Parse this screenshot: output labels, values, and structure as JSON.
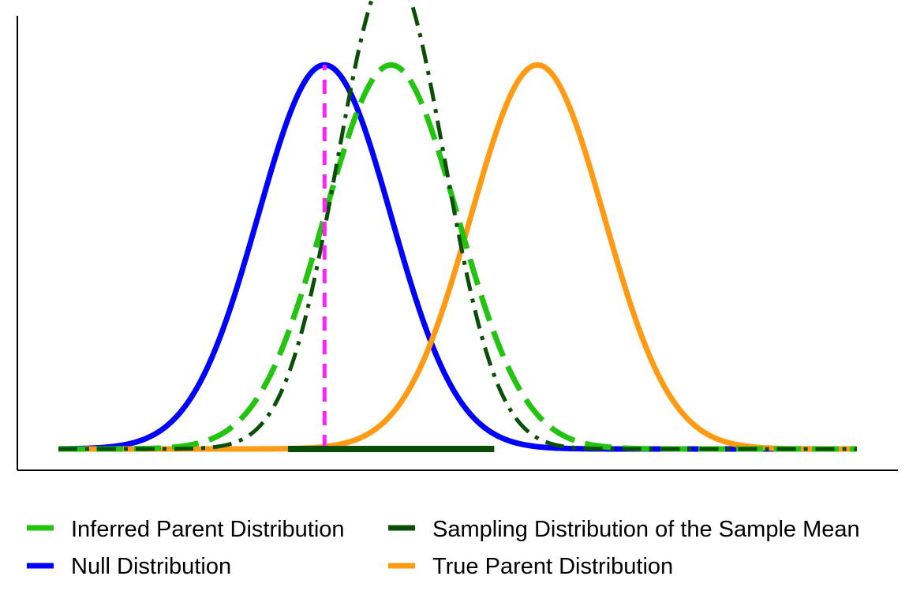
{
  "chart_data": {
    "type": "line",
    "title": "",
    "xlabel": "",
    "ylabel": "",
    "x_ticks": false,
    "y_ticks": false,
    "grid": false,
    "xlim": [
      -4,
      8
    ],
    "ylim": [
      0,
      0.45
    ],
    "legend_position": "bottom",
    "series": [
      {
        "key": "inferred",
        "name": "Inferred Parent Distribution",
        "distribution": "normal",
        "mean": 1.0,
        "sd": 1.0,
        "dash": "dashed",
        "color": "#22c40f"
      },
      {
        "key": "sampling",
        "name": "Sampling Distribution of the Sample Mean",
        "distribution": "normal",
        "mean": 1.0,
        "sd": 0.8,
        "dash": "dotdash",
        "color": "#0b4f07"
      },
      {
        "key": "null",
        "name": "Null Distribution",
        "distribution": "normal",
        "mean": 0.0,
        "sd": 1.0,
        "dash": "solid",
        "color": "#0000ff"
      },
      {
        "key": "true",
        "name": "True Parent Distribution",
        "distribution": "normal",
        "mean": 3.2,
        "sd": 1.0,
        "dash": "solid",
        "color": "#ff9a12"
      }
    ],
    "annotations": [
      {
        "type": "vertical-line",
        "x": 0.0,
        "style": "dashed",
        "color": "#ff22ff"
      },
      {
        "type": "baseline-segment",
        "x_range": [
          -0.55,
          2.55
        ],
        "color": "#0b4f07"
      }
    ]
  }
}
